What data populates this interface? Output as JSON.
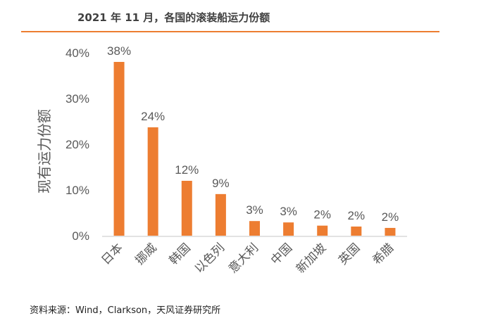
{
  "chart_data": {
    "type": "bar",
    "title": "2021 年 11 月，各国的滚装船运力份额",
    "xlabel": "",
    "ylabel": "现有运力份额",
    "ylim": [
      0,
      40
    ],
    "yticks": [
      "0%",
      "10%",
      "20%",
      "30%",
      "40%"
    ],
    "ytick_values": [
      0,
      10,
      20,
      30,
      40
    ],
    "categories": [
      "日本",
      "挪威",
      "韩国",
      "以色列",
      "意大利",
      "中国",
      "新加坡",
      "英国",
      "希腊"
    ],
    "values": [
      38.0,
      23.7,
      12.0,
      9.1,
      3.2,
      2.9,
      2.2,
      2.0,
      1.7
    ],
    "data_labels": [
      "38%",
      "24%",
      "12%",
      "9%",
      "3%",
      "3%",
      "2%",
      "2%",
      "2%"
    ],
    "grid": false,
    "colors": {
      "bar": "#ED7D31",
      "axis": "#D9D9D9",
      "text": "#595959"
    }
  },
  "source": "资料来源：Wind，Clarkson，天风证券研究所"
}
